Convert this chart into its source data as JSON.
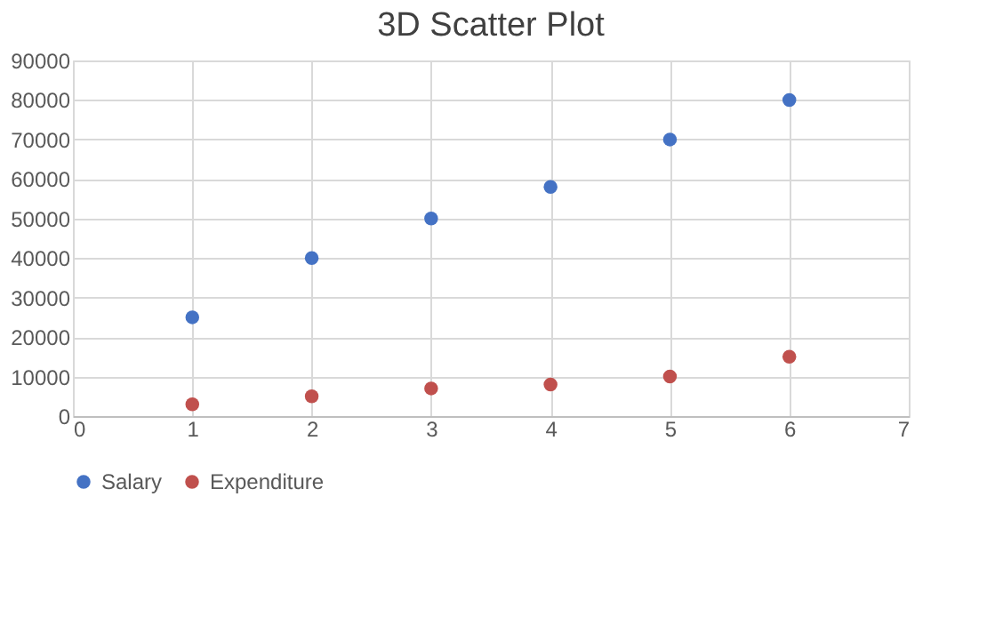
{
  "chart_data": {
    "type": "scatter",
    "title": "3D Scatter Plot",
    "x": [
      1,
      2,
      3,
      4,
      5,
      6
    ],
    "series": [
      {
        "name": "Salary",
        "color": "#4472c4",
        "values": [
          25000,
          40000,
          50000,
          58000,
          70000,
          80000
        ]
      },
      {
        "name": "Expenditure",
        "color": "#c0504d",
        "values": [
          3000,
          5000,
          7000,
          8000,
          10000,
          15000
        ]
      }
    ],
    "xlim": [
      0,
      7
    ],
    "xticks": [
      0,
      1,
      2,
      3,
      4,
      5,
      6,
      7
    ],
    "ylim": [
      0,
      90000
    ],
    "yticks": [
      0,
      10000,
      20000,
      30000,
      40000,
      50000,
      60000,
      70000,
      80000,
      90000
    ],
    "grid": true,
    "legend": "bottom",
    "marker": "circle"
  }
}
